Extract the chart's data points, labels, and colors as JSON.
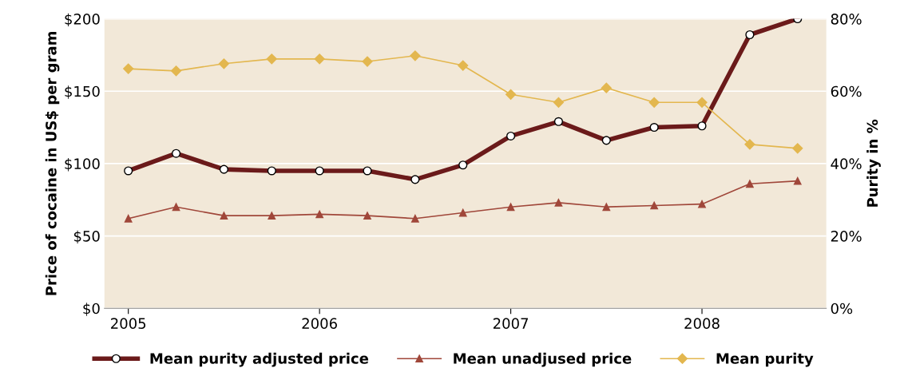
{
  "chart_data": {
    "type": "line",
    "xlabel": null,
    "ylabel": "Price of cocaine in US$ per gram",
    "y2label": "Purity in %",
    "x": [
      2005,
      2005.25,
      2005.5,
      2005.75,
      2006,
      2006.25,
      2006.5,
      2006.75,
      2007,
      2007.25,
      2007.5,
      2007.75,
      2008,
      2008.25,
      2008.5
    ],
    "xlim": [
      2004.875,
      2008.65
    ],
    "xticks": [
      2005,
      2006,
      2007,
      2008
    ],
    "ylim": [
      0,
      200
    ],
    "yticks": [
      {
        "value": 0,
        "label": "$0"
      },
      {
        "value": 50,
        "label": "$50"
      },
      {
        "value": 100,
        "label": "$100"
      },
      {
        "value": 150,
        "label": "$150"
      },
      {
        "value": 200,
        "label": "$200"
      }
    ],
    "y2lim": [
      0,
      80
    ],
    "y2ticks": [
      {
        "value": 0,
        "label": "0%"
      },
      {
        "value": 20,
        "label": "20%"
      },
      {
        "value": 40,
        "label": "40%"
      },
      {
        "value": 60,
        "label": "60%"
      },
      {
        "value": 80,
        "label": "80%"
      }
    ],
    "grid": "y",
    "legend": "bottom",
    "series": [
      {
        "name": "Mean purity adjusted price",
        "color": "#6b1a1a",
        "marker": "circle",
        "values": [
          95,
          107,
          96,
          95,
          95,
          95,
          89,
          99,
          119,
          129,
          116,
          125,
          126,
          189,
          200
        ]
      },
      {
        "name": "Mean unadjused price",
        "color": "#a0473a",
        "marker": "triangle",
        "values": [
          62,
          70,
          64,
          64,
          65,
          64,
          62,
          66,
          70,
          73,
          70,
          71,
          72,
          86,
          88
        ]
      },
      {
        "name": "Mean purity",
        "color": "#e3b74f",
        "marker": "diamond",
        "axis": "y2",
        "values": [
          66.2,
          65.6,
          67.6,
          68.9,
          68.9,
          68.2,
          69.8,
          67.1,
          59.1,
          56.9,
          60.9,
          56.9,
          56.9,
          45.3,
          44.2
        ]
      }
    ]
  }
}
